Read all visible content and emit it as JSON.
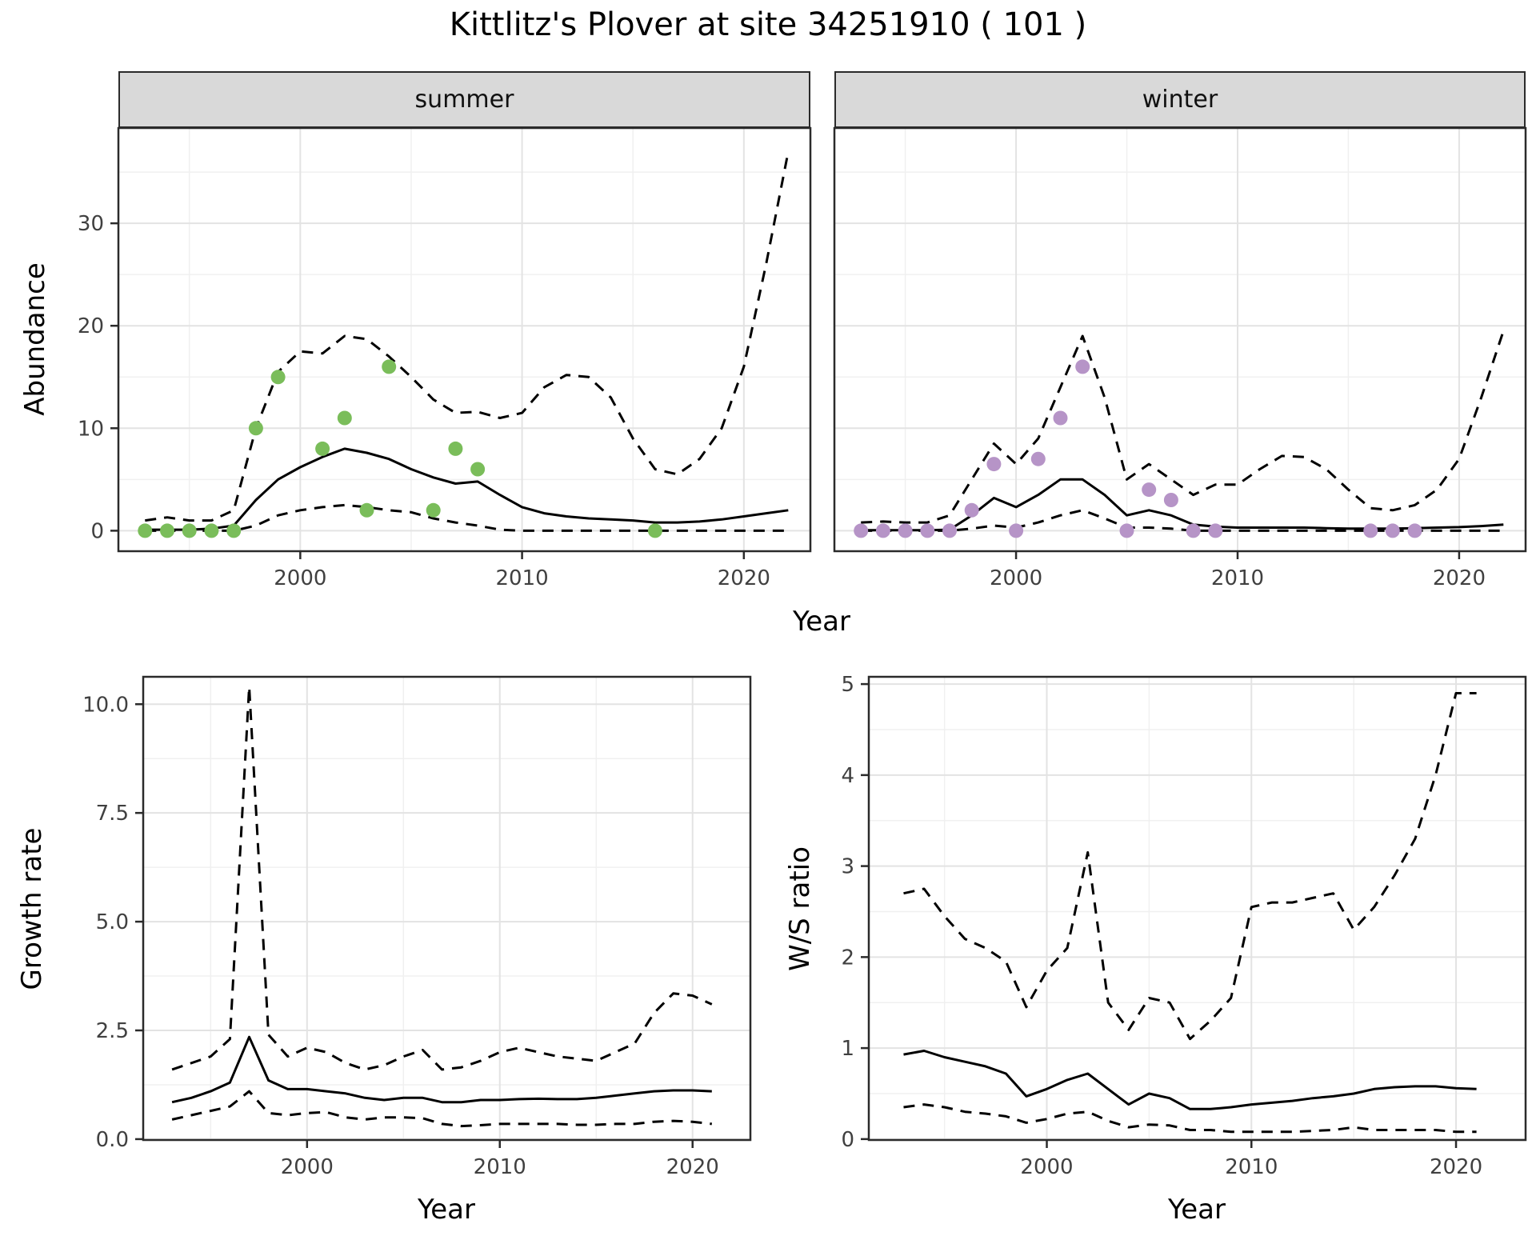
{
  "title": "Kittlitz's Plover at site 34251910 ( 101 )",
  "colors": {
    "summer_points": "#7abd5a",
    "winter_points": "#b694c7",
    "line": "#000000",
    "strip_bg": "#d9d9d9",
    "grid_major": "#e3e3e3",
    "grid_minor": "#f0f0f0",
    "panel_border": "#2b2b2b",
    "tick_text": "#404040"
  },
  "axes": {
    "top_y_label": "Abundance",
    "top_x_label": "Year",
    "growth_y_label": "Growth rate",
    "growth_x_label": "Year",
    "ws_y_label": "W/S ratio",
    "ws_x_label": "Year"
  },
  "chart_data": [
    {
      "id": "abundance-summer",
      "type": "line",
      "facet": "summer",
      "xlabel": "Year",
      "ylabel": "Abundance",
      "xlim": [
        1991.8,
        2023.0
      ],
      "ylim": [
        -2,
        39.3
      ],
      "xticks": [
        2000,
        2010,
        2020
      ],
      "xtick_labels": [
        "2000",
        "2010",
        "2020"
      ],
      "yticks": [
        0,
        10,
        20,
        30
      ],
      "ytick_labels": [
        "0",
        "10",
        "20",
        "30"
      ],
      "x_minor": [
        1995,
        2005,
        2015
      ],
      "y_minor": [
        5,
        15,
        25,
        35
      ],
      "years": [
        1993,
        1994,
        1995,
        1996,
        1997,
        1998,
        1999,
        2000,
        2001,
        2002,
        2003,
        2004,
        2005,
        2006,
        2007,
        2008,
        2009,
        2010,
        2011,
        2012,
        2013,
        2014,
        2015,
        2016,
        2017,
        2018,
        2019,
        2020,
        2021,
        2022
      ],
      "series": [
        {
          "name": "median",
          "style": "solid",
          "values": [
            0.1,
            0.1,
            0.1,
            0.2,
            0.5,
            3,
            5,
            6.2,
            7.2,
            8,
            7.6,
            7,
            6,
            5.2,
            4.6,
            4.8,
            3.5,
            2.3,
            1.7,
            1.4,
            1.2,
            1.1,
            1,
            0.8,
            0.8,
            0.9,
            1.1,
            1.4,
            1.7,
            2
          ]
        },
        {
          "name": "upper_ci",
          "style": "dashed",
          "values": [
            1,
            1.3,
            1,
            1,
            2,
            10,
            15.5,
            17.5,
            17.3,
            19,
            18.7,
            17,
            15,
            12.8,
            11.5,
            11.6,
            11,
            11.5,
            14,
            15.2,
            15,
            13,
            9,
            6,
            5.5,
            7,
            10,
            16,
            26,
            37
          ]
        },
        {
          "name": "lower_ci",
          "style": "dashed",
          "values": [
            0,
            0,
            0,
            0,
            0,
            0.5,
            1.5,
            2,
            2.3,
            2.5,
            2.3,
            2,
            1.8,
            1.2,
            0.8,
            0.5,
            0.1,
            0,
            0,
            0,
            0,
            0,
            0,
            0,
            0,
            0,
            0,
            0,
            0,
            0
          ]
        }
      ],
      "points": {
        "name": "observations",
        "color_key": "summer_points",
        "x": [
          1993,
          1994,
          1995,
          1996,
          1997,
          1998,
          1999,
          2001,
          2002,
          2003,
          2004,
          2006,
          2007,
          2008,
          2016
        ],
        "y": [
          0,
          0,
          0,
          0,
          0,
          10,
          15,
          8,
          11,
          2,
          16,
          2,
          8,
          6,
          0
        ]
      }
    },
    {
      "id": "abundance-winter",
      "type": "line",
      "facet": "winter",
      "xlabel": "Year",
      "ylabel": "Abundance",
      "xlim": [
        1991.8,
        2023.0
      ],
      "ylim": [
        -2,
        39.3
      ],
      "xticks": [
        2000,
        2010,
        2020
      ],
      "xtick_labels": [
        "2000",
        "2010",
        "2020"
      ],
      "yticks": [
        0,
        10,
        20,
        30
      ],
      "ytick_labels": [
        "0",
        "10",
        "20",
        "30"
      ],
      "x_minor": [
        1995,
        2005,
        2015
      ],
      "y_minor": [
        5,
        15,
        25,
        35
      ],
      "years": [
        1993,
        1994,
        1995,
        1996,
        1997,
        1998,
        1999,
        2000,
        2001,
        2002,
        2003,
        2004,
        2005,
        2006,
        2007,
        2008,
        2009,
        2010,
        2011,
        2012,
        2013,
        2014,
        2015,
        2016,
        2017,
        2018,
        2019,
        2020,
        2021,
        2022
      ],
      "series": [
        {
          "name": "median",
          "style": "solid",
          "values": [
            0.05,
            0.05,
            0.05,
            0.05,
            0.1,
            1.5,
            3.2,
            2.3,
            3.5,
            5,
            5,
            3.5,
            1.5,
            2,
            1.5,
            0.6,
            0.4,
            0.3,
            0.3,
            0.3,
            0.3,
            0.25,
            0.2,
            0.2,
            0.2,
            0.25,
            0.3,
            0.35,
            0.45,
            0.6
          ]
        },
        {
          "name": "upper_ci",
          "style": "dashed",
          "values": [
            0.8,
            0.9,
            0.8,
            0.8,
            1.5,
            5,
            8.5,
            6.5,
            9,
            14,
            19,
            13,
            5,
            6.5,
            5,
            3.5,
            4.5,
            4.5,
            6,
            7.3,
            7.2,
            6,
            4,
            2.2,
            2,
            2.5,
            4,
            7,
            13,
            19.5
          ]
        },
        {
          "name": "lower_ci",
          "style": "dashed",
          "values": [
            0,
            0,
            0,
            0,
            0,
            0.2,
            0.5,
            0.3,
            0.8,
            1.5,
            2,
            1.2,
            0.3,
            0.3,
            0.2,
            0,
            0,
            0,
            0,
            0,
            0,
            0,
            0,
            0,
            0,
            0,
            0,
            0,
            0,
            0
          ]
        }
      ],
      "points": {
        "name": "observations",
        "color_key": "winter_points",
        "x": [
          1993,
          1994,
          1995,
          1996,
          1997,
          1998,
          1999,
          2000,
          2001,
          2002,
          2003,
          2005,
          2006,
          2007,
          2008,
          2009,
          2016,
          2017,
          2018
        ],
        "y": [
          0,
          0,
          0,
          0,
          0,
          2,
          6.5,
          0,
          7,
          11,
          16,
          0,
          4,
          3,
          0,
          0,
          0,
          0,
          0
        ]
      }
    },
    {
      "id": "growth-rate",
      "type": "line",
      "facet": "",
      "xlabel": "Year",
      "ylabel": "Growth rate",
      "xlim": [
        1991.5,
        2023.0
      ],
      "ylim": [
        -0.02,
        10.63
      ],
      "xticks": [
        2000,
        2010,
        2020
      ],
      "xtick_labels": [
        "2000",
        "2010",
        "2020"
      ],
      "yticks": [
        0,
        2.5,
        5,
        7.5,
        10
      ],
      "ytick_labels": [
        "0.0",
        "2.5",
        "5.0",
        "7.5",
        "10.0"
      ],
      "x_minor": [
        1995,
        2005,
        2015
      ],
      "y_minor": [
        1.25,
        3.75,
        6.25,
        8.75
      ],
      "years": [
        1993,
        1994,
        1995,
        1996,
        1997,
        1998,
        1999,
        2000,
        2001,
        2002,
        2003,
        2004,
        2005,
        2006,
        2007,
        2008,
        2009,
        2010,
        2011,
        2012,
        2013,
        2014,
        2015,
        2016,
        2017,
        2018,
        2019,
        2020,
        2021
      ],
      "series": [
        {
          "name": "median",
          "style": "solid",
          "values": [
            0.85,
            0.95,
            1.1,
            1.3,
            2.35,
            1.35,
            1.15,
            1.15,
            1.1,
            1.05,
            0.95,
            0.9,
            0.95,
            0.95,
            0.85,
            0.85,
            0.9,
            0.9,
            0.92,
            0.93,
            0.92,
            0.92,
            0.95,
            1,
            1.05,
            1.1,
            1.12,
            1.12,
            1.1
          ]
        },
        {
          "name": "upper_ci",
          "style": "dashed",
          "values": [
            1.6,
            1.75,
            1.9,
            2.3,
            10.4,
            2.4,
            1.9,
            2.1,
            2,
            1.75,
            1.6,
            1.7,
            1.9,
            2.05,
            1.6,
            1.65,
            1.8,
            2,
            2.1,
            2,
            1.9,
            1.85,
            1.8,
            2,
            2.2,
            2.9,
            3.35,
            3.3,
            3.1
          ]
        },
        {
          "name": "lower_ci",
          "style": "dashed",
          "values": [
            0.45,
            0.55,
            0.65,
            0.75,
            1.1,
            0.6,
            0.55,
            0.6,
            0.62,
            0.5,
            0.45,
            0.5,
            0.5,
            0.48,
            0.35,
            0.3,
            0.32,
            0.35,
            0.35,
            0.35,
            0.35,
            0.33,
            0.33,
            0.35,
            0.35,
            0.4,
            0.42,
            0.4,
            0.35
          ]
        }
      ]
    },
    {
      "id": "ws-ratio",
      "type": "line",
      "facet": "",
      "xlabel": "Year",
      "ylabel": "W/S ratio",
      "xlim": [
        1991.3,
        2023.4
      ],
      "ylim": [
        -0.01,
        5.08
      ],
      "xticks": [
        2000,
        2010,
        2020
      ],
      "xtick_labels": [
        "2000",
        "2010",
        "2020"
      ],
      "yticks": [
        0,
        1,
        2,
        3,
        4,
        5
      ],
      "ytick_labels": [
        "0",
        "1",
        "2",
        "3",
        "4",
        "5"
      ],
      "x_minor": [
        1995,
        2005,
        2015
      ],
      "y_minor": [
        0.5,
        1.5,
        2.5,
        3.5,
        4.5
      ],
      "years": [
        1993,
        1994,
        1995,
        1996,
        1997,
        1998,
        1999,
        2000,
        2001,
        2002,
        2003,
        2004,
        2005,
        2006,
        2007,
        2008,
        2009,
        2010,
        2011,
        2012,
        2013,
        2014,
        2015,
        2016,
        2017,
        2018,
        2019,
        2020,
        2021
      ],
      "series": [
        {
          "name": "median",
          "style": "solid",
          "values": [
            0.93,
            0.97,
            0.9,
            0.85,
            0.8,
            0.72,
            0.47,
            0.55,
            0.65,
            0.72,
            0.55,
            0.38,
            0.5,
            0.45,
            0.33,
            0.33,
            0.35,
            0.38,
            0.4,
            0.42,
            0.45,
            0.47,
            0.5,
            0.55,
            0.57,
            0.58,
            0.58,
            0.56,
            0.55
          ]
        },
        {
          "name": "upper_ci",
          "style": "dashed",
          "values": [
            2.7,
            2.75,
            2.45,
            2.2,
            2.1,
            1.95,
            1.45,
            1.85,
            2.1,
            3.15,
            1.5,
            1.2,
            1.55,
            1.5,
            1.1,
            1.3,
            1.55,
            2.55,
            2.6,
            2.6,
            2.65,
            2.7,
            2.3,
            2.55,
            2.9,
            3.3,
            4,
            4.9,
            4.9
          ]
        },
        {
          "name": "lower_ci",
          "style": "dashed",
          "values": [
            0.35,
            0.38,
            0.35,
            0.3,
            0.28,
            0.25,
            0.18,
            0.22,
            0.28,
            0.3,
            0.2,
            0.13,
            0.16,
            0.15,
            0.1,
            0.1,
            0.08,
            0.08,
            0.08,
            0.08,
            0.09,
            0.1,
            0.13,
            0.1,
            0.1,
            0.1,
            0.1,
            0.08,
            0.08
          ]
        }
      ]
    }
  ]
}
